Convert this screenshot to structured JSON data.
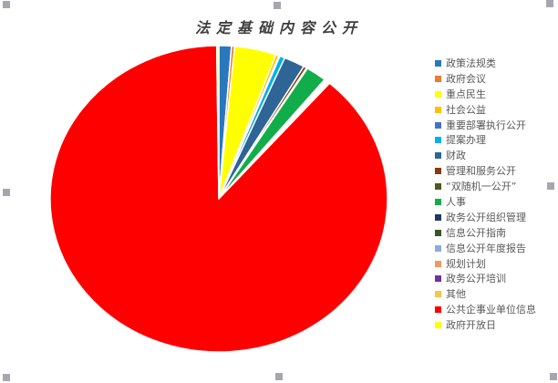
{
  "chart_data": {
    "type": "pie",
    "title": "法定基础内容公开",
    "legend_position": "right",
    "direction": "clockwise",
    "start_angle_deg": 0,
    "series": [
      {
        "label": "政策法规类",
        "value": 1.2,
        "color": "#2878BE"
      },
      {
        "label": "政府会议",
        "value": 0.3,
        "color": "#ED7D31"
      },
      {
        "label": "重点民生",
        "value": 4.0,
        "color": "#FFFF00"
      },
      {
        "label": "社会公益",
        "value": 0.3,
        "color": "#FFC000"
      },
      {
        "label": "重要部署执行公开",
        "value": 0.1,
        "color": "#4472C4"
      },
      {
        "label": "提案办理",
        "value": 0.5,
        "color": "#00B0F0"
      },
      {
        "label": "财政",
        "value": 2.0,
        "color": "#2E6496"
      },
      {
        "label": "管理和服务公开",
        "value": 0.3,
        "color": "#843C0C"
      },
      {
        "label": "“双随机一公开”",
        "value": 0.1,
        "color": "#4D5A21"
      },
      {
        "label": "人事",
        "value": 2.0,
        "color": "#12AD4B"
      },
      {
        "label": "政务公开组织管理",
        "value": 0.1,
        "color": "#1F3864"
      },
      {
        "label": "信息公开指南",
        "value": 0.1,
        "color": "#375623"
      },
      {
        "label": "信息公开年度报告",
        "value": 0.1,
        "color": "#8FAADC"
      },
      {
        "label": "规划计划",
        "value": 0.1,
        "color": "#F09A62"
      },
      {
        "label": "政务公开培训",
        "value": 0.1,
        "color": "#7030A0"
      },
      {
        "label": "其他",
        "value": 0.1,
        "color": "#F7C64A"
      },
      {
        "label": "公共企事业单位信息",
        "value": 88.4,
        "color": "#FF0000"
      },
      {
        "label": "政府开放日",
        "value": 0.2,
        "color": "#FFFF00"
      }
    ]
  },
  "ui": {
    "background_color": "#FFFFFF",
    "title_color": "#3F3F3F",
    "legend_text_color": "#595959",
    "selection_handle_color": "#A6A7AE"
  }
}
